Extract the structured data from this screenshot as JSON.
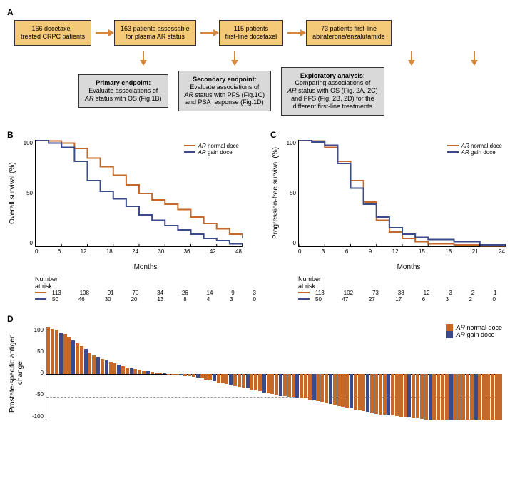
{
  "colors": {
    "orange": "#c5692a",
    "blue": "#3a4a8a",
    "box_orange": "#f4c978",
    "box_grey": "#d9d9d9",
    "arrow": "#d8873a",
    "dashed": "#999999"
  },
  "panelA": {
    "label": "A",
    "top_boxes": [
      "166 docetaxel-\ntreated CRPC patients",
      "163 patients assessable\nfor plasma AR status",
      "115 patients\nfirst-line docetaxel",
      "73 patients first-line\nabiraterone/enzalutamide"
    ],
    "bottom_boxes": [
      {
        "title": "Primary endpoint:",
        "body": "Evaluate associations of\nAR status with OS (Fig.1B)"
      },
      {
        "title": "Secondary endpoint:",
        "body": "Evaluate associations of\nAR status with PFS (Fig.1C)\nand PSA response (Fig.1D)"
      },
      {
        "title": "Exploratory analysis:",
        "body": "Comparing associations of\nAR status with OS (Fig. 2A, 2C)\nand PFS (Fig. 2B, 2D) for the\ndifferent first-line treatments"
      }
    ]
  },
  "panelB": {
    "label": "B",
    "ylabel": "Overall survival (%)",
    "xlabel": "Months",
    "xticks": [
      0,
      6,
      12,
      18,
      24,
      30,
      36,
      42,
      48
    ],
    "yticks": [
      100,
      50,
      0
    ],
    "legend": [
      {
        "label": "AR normal doce",
        "color": "#c5692a"
      },
      {
        "label": "AR gain doce",
        "color": "#3a4a8a"
      }
    ],
    "series": {
      "normal": [
        [
          0,
          100
        ],
        [
          3,
          99
        ],
        [
          6,
          97
        ],
        [
          9,
          92
        ],
        [
          12,
          83
        ],
        [
          15,
          75
        ],
        [
          18,
          67
        ],
        [
          21,
          58
        ],
        [
          24,
          50
        ],
        [
          27,
          44
        ],
        [
          30,
          40
        ],
        [
          33,
          35
        ],
        [
          36,
          28
        ],
        [
          39,
          22
        ],
        [
          42,
          17
        ],
        [
          45,
          12
        ],
        [
          48,
          8
        ]
      ],
      "gain": [
        [
          0,
          100
        ],
        [
          3,
          97
        ],
        [
          6,
          93
        ],
        [
          9,
          80
        ],
        [
          12,
          62
        ],
        [
          15,
          52
        ],
        [
          18,
          45
        ],
        [
          21,
          38
        ],
        [
          24,
          30
        ],
        [
          27,
          25
        ],
        [
          30,
          20
        ],
        [
          33,
          16
        ],
        [
          36,
          12
        ],
        [
          39,
          8
        ],
        [
          42,
          6
        ],
        [
          45,
          3
        ],
        [
          48,
          0
        ]
      ]
    },
    "risk_label": "Number\nat risk",
    "risk": {
      "normal": [
        113,
        108,
        91,
        70,
        34,
        26,
        14,
        9,
        3
      ],
      "gain": [
        50,
        46,
        30,
        20,
        13,
        8,
        4,
        3,
        0
      ]
    }
  },
  "panelC": {
    "label": "C",
    "ylabel": "Progression-free survival (%)",
    "xlabel": "Months",
    "xticks": [
      0,
      3,
      6,
      9,
      12,
      15,
      18,
      21,
      24
    ],
    "yticks": [
      100,
      50,
      0
    ],
    "legend": [
      {
        "label": "AR normal doce",
        "color": "#c5692a"
      },
      {
        "label": "AR gain doce",
        "color": "#3a4a8a"
      }
    ],
    "series": {
      "normal": [
        [
          0,
          100
        ],
        [
          1.5,
          99
        ],
        [
          3,
          93
        ],
        [
          4.5,
          80
        ],
        [
          6,
          62
        ],
        [
          7.5,
          42
        ],
        [
          9,
          25
        ],
        [
          10.5,
          14
        ],
        [
          12,
          8
        ],
        [
          13.5,
          5
        ],
        [
          15,
          3
        ],
        [
          18,
          2
        ],
        [
          21,
          1
        ],
        [
          24,
          0
        ]
      ],
      "gain": [
        [
          0,
          100
        ],
        [
          1.5,
          98
        ],
        [
          3,
          95
        ],
        [
          4.5,
          78
        ],
        [
          6,
          55
        ],
        [
          7.5,
          40
        ],
        [
          9,
          28
        ],
        [
          10.5,
          18
        ],
        [
          12,
          12
        ],
        [
          13.5,
          9
        ],
        [
          15,
          7
        ],
        [
          18,
          5
        ],
        [
          21,
          2
        ],
        [
          24,
          0
        ]
      ]
    },
    "risk_label": "Number\nat risk",
    "risk": {
      "normal": [
        113,
        102,
        73,
        38,
        12,
        3,
        2,
        1,
        1
      ],
      "gain": [
        50,
        47,
        27,
        17,
        6,
        3,
        2,
        0,
        0
      ]
    }
  },
  "panelD": {
    "label": "D",
    "ylabel": "Prostate-specific\nantigen change",
    "yticks": [
      100,
      50,
      0,
      -50,
      -100
    ],
    "ref_line": -50,
    "legend": [
      {
        "label": "AR normal doce",
        "color": "#c5692a"
      },
      {
        "label": "AR gain doce",
        "color": "#3a4a8a"
      }
    ],
    "bars": [
      {
        "v": 105,
        "c": "o"
      },
      {
        "v": 100,
        "c": "o"
      },
      {
        "v": 98,
        "c": "o"
      },
      {
        "v": 92,
        "c": "b"
      },
      {
        "v": 88,
        "c": "o"
      },
      {
        "v": 82,
        "c": "o"
      },
      {
        "v": 75,
        "c": "b"
      },
      {
        "v": 68,
        "c": "o"
      },
      {
        "v": 62,
        "c": "o"
      },
      {
        "v": 55,
        "c": "b"
      },
      {
        "v": 48,
        "c": "o"
      },
      {
        "v": 42,
        "c": "o"
      },
      {
        "v": 38,
        "c": "b"
      },
      {
        "v": 34,
        "c": "o"
      },
      {
        "v": 30,
        "c": "b"
      },
      {
        "v": 27,
        "c": "o"
      },
      {
        "v": 24,
        "c": "o"
      },
      {
        "v": 21,
        "c": "b"
      },
      {
        "v": 18,
        "c": "o"
      },
      {
        "v": 15,
        "c": "o"
      },
      {
        "v": 13,
        "c": "b"
      },
      {
        "v": 11,
        "c": "o"
      },
      {
        "v": 9,
        "c": "o"
      },
      {
        "v": 7,
        "c": "o"
      },
      {
        "v": 6,
        "c": "b"
      },
      {
        "v": 5,
        "c": "o"
      },
      {
        "v": 4,
        "c": "o"
      },
      {
        "v": 3,
        "c": "o"
      },
      {
        "v": 2,
        "c": "b"
      },
      {
        "v": 1,
        "c": "o"
      },
      {
        "v": -1,
        "c": "o"
      },
      {
        "v": -2,
        "c": "o"
      },
      {
        "v": -3,
        "c": "b"
      },
      {
        "v": -4,
        "c": "o"
      },
      {
        "v": -5,
        "c": "o"
      },
      {
        "v": -6,
        "c": "o"
      },
      {
        "v": -8,
        "c": "b"
      },
      {
        "v": -10,
        "c": "o"
      },
      {
        "v": -12,
        "c": "o"
      },
      {
        "v": -14,
        "c": "o"
      },
      {
        "v": -16,
        "c": "b"
      },
      {
        "v": -18,
        "c": "o"
      },
      {
        "v": -20,
        "c": "o"
      },
      {
        "v": -22,
        "c": "o"
      },
      {
        "v": -24,
        "c": "b"
      },
      {
        "v": -26,
        "c": "o"
      },
      {
        "v": -28,
        "c": "o"
      },
      {
        "v": -30,
        "c": "o"
      },
      {
        "v": -32,
        "c": "b"
      },
      {
        "v": -34,
        "c": "o"
      },
      {
        "v": -36,
        "c": "o"
      },
      {
        "v": -38,
        "c": "o"
      },
      {
        "v": -40,
        "c": "b"
      },
      {
        "v": -42,
        "c": "o"
      },
      {
        "v": -44,
        "c": "o"
      },
      {
        "v": -46,
        "c": "o"
      },
      {
        "v": -48,
        "c": "b"
      },
      {
        "v": -49,
        "c": "o"
      },
      {
        "v": -50,
        "c": "o"
      },
      {
        "v": -51,
        "c": "o"
      },
      {
        "v": -52,
        "c": "b"
      },
      {
        "v": -53,
        "c": "o"
      },
      {
        "v": -54,
        "c": "o"
      },
      {
        "v": -56,
        "c": "o"
      },
      {
        "v": -58,
        "c": "b"
      },
      {
        "v": -60,
        "c": "o"
      },
      {
        "v": -62,
        "c": "o"
      },
      {
        "v": -64,
        "c": "o"
      },
      {
        "v": -66,
        "c": "b"
      },
      {
        "v": -68,
        "c": "o"
      },
      {
        "v": -70,
        "c": "o"
      },
      {
        "v": -72,
        "c": "o"
      },
      {
        "v": -74,
        "c": "o"
      },
      {
        "v": -76,
        "c": "b"
      },
      {
        "v": -78,
        "c": "o"
      },
      {
        "v": -80,
        "c": "o"
      },
      {
        "v": -82,
        "c": "o"
      },
      {
        "v": -84,
        "c": "b"
      },
      {
        "v": -86,
        "c": "o"
      },
      {
        "v": -88,
        "c": "o"
      },
      {
        "v": -89,
        "c": "o"
      },
      {
        "v": -90,
        "c": "o"
      },
      {
        "v": -91,
        "c": "b"
      },
      {
        "v": -92,
        "c": "o"
      },
      {
        "v": -93,
        "c": "o"
      },
      {
        "v": -94,
        "c": "o"
      },
      {
        "v": -95,
        "c": "o"
      },
      {
        "v": -96,
        "c": "b"
      },
      {
        "v": -97,
        "c": "o"
      },
      {
        "v": -98,
        "c": "o"
      },
      {
        "v": -99,
        "c": "o"
      },
      {
        "v": -100,
        "c": "o"
      },
      {
        "v": -100,
        "c": "b"
      },
      {
        "v": -100,
        "c": "o"
      },
      {
        "v": -100,
        "c": "o"
      },
      {
        "v": -100,
        "c": "o"
      },
      {
        "v": -100,
        "c": "o"
      },
      {
        "v": -100,
        "c": "b"
      },
      {
        "v": -100,
        "c": "o"
      },
      {
        "v": -100,
        "c": "o"
      },
      {
        "v": -100,
        "c": "o"
      },
      {
        "v": -100,
        "c": "o"
      },
      {
        "v": -100,
        "c": "o"
      },
      {
        "v": -100,
        "c": "b"
      },
      {
        "v": -100,
        "c": "o"
      },
      {
        "v": -100,
        "c": "o"
      },
      {
        "v": -100,
        "c": "o"
      },
      {
        "v": -100,
        "c": "o"
      },
      {
        "v": -100,
        "c": "o"
      },
      {
        "v": -100,
        "c": "o"
      }
    ]
  }
}
